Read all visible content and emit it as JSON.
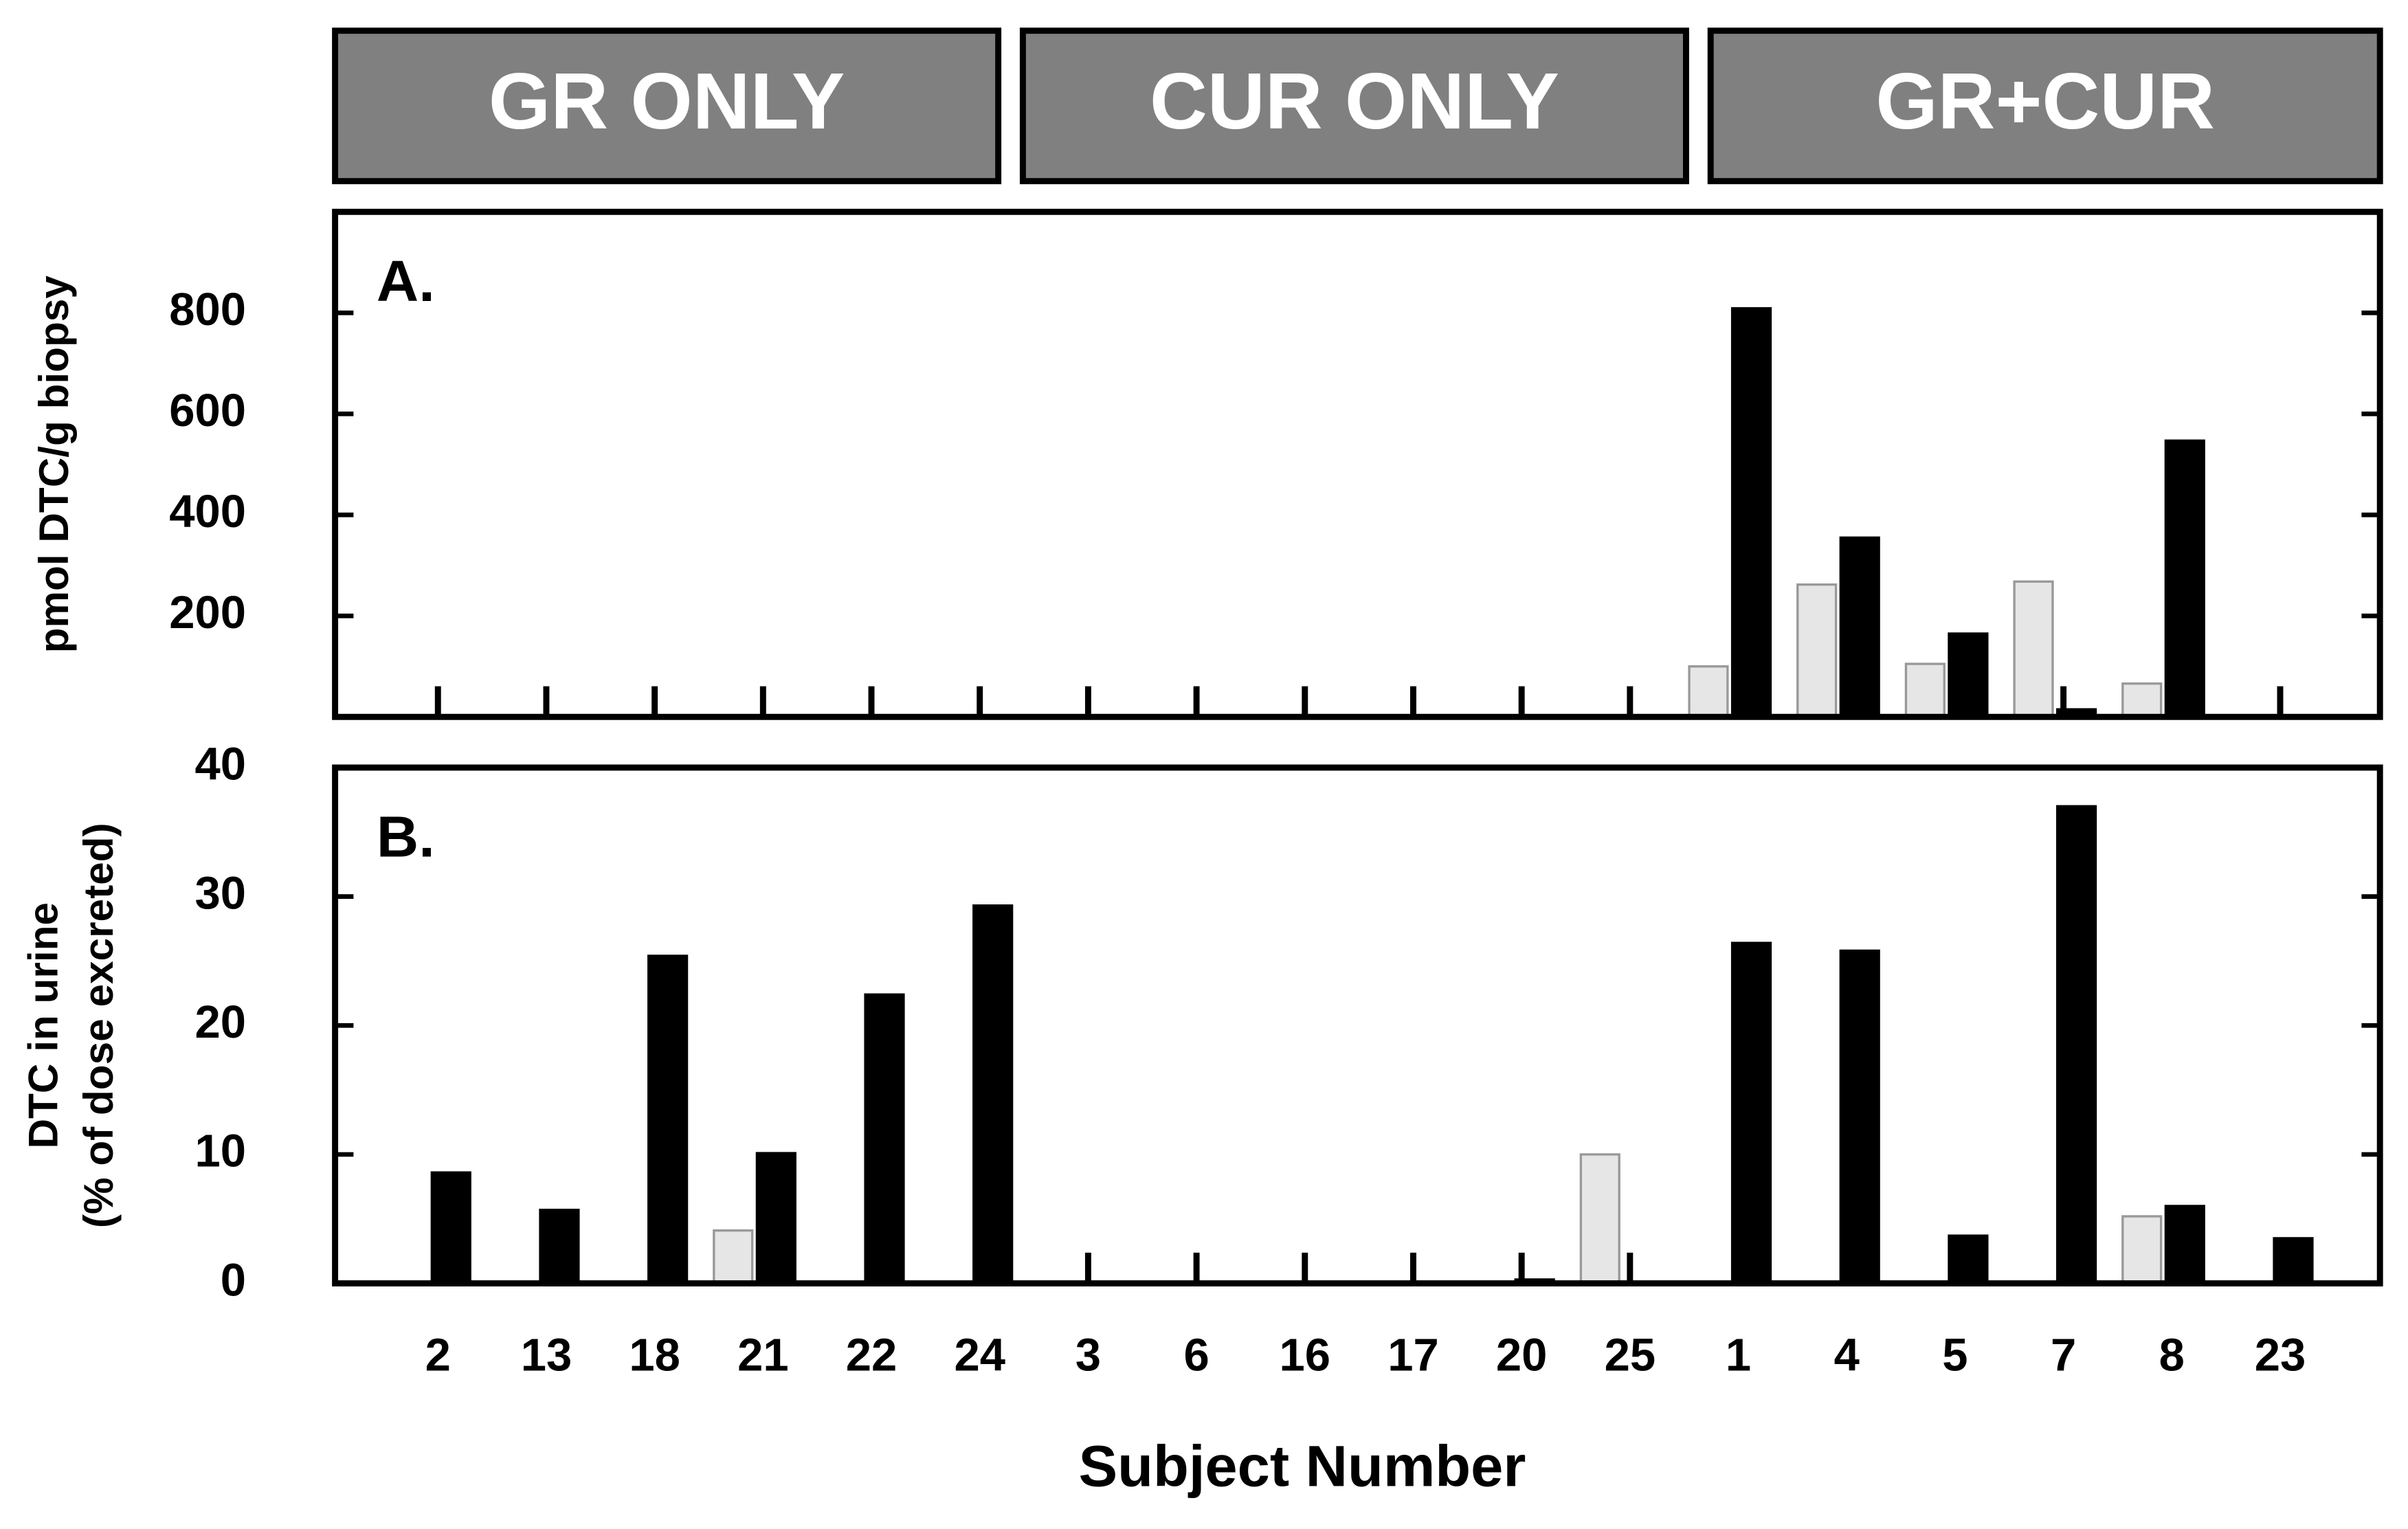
{
  "groups": [
    "GR ONLY",
    "CUR ONLY",
    "GR+CUR"
  ],
  "x_label": "Subject Number",
  "chart_data": [
    {
      "type": "bar",
      "panel_label": "A.",
      "y_label": [
        "pmol DTC/g biopsy"
      ],
      "ylim": [
        0,
        1000
      ],
      "yticks": [
        200,
        400,
        600,
        800
      ],
      "series": [
        {
          "color": "#e6e6e6",
          "values": [
            0,
            0,
            0,
            0,
            0,
            0,
            0,
            0,
            0,
            0,
            0,
            0,
            100,
            262,
            105,
            268,
            66,
            0
          ]
        },
        {
          "color": "#000000",
          "values": [
            0,
            0,
            0,
            0,
            0,
            0,
            0,
            0,
            0,
            0,
            0,
            0,
            809,
            355,
            165,
            15,
            547,
            0
          ]
        }
      ]
    },
    {
      "type": "bar",
      "panel_label": "B.",
      "y_label": [
        "DTC in urine",
        "(% of dose excreted)"
      ],
      "categories": [
        "2",
        "13",
        "18",
        "21",
        "22",
        "24",
        "3",
        "6",
        "16",
        "17",
        "20",
        "25",
        "1",
        "4",
        "5",
        "7",
        "8",
        "23"
      ],
      "ylim": [
        0,
        40
      ],
      "yticks": [
        0,
        10,
        20,
        30,
        40
      ],
      "series": [
        {
          "color": "#e6e6e6",
          "values": [
            0,
            0,
            0,
            4.1,
            0,
            0,
            0,
            0,
            0,
            0,
            0,
            10,
            0,
            0,
            0,
            0,
            5.2,
            0
          ]
        },
        {
          "color": "#000000",
          "values": [
            8.6,
            5.7,
            25.4,
            10.1,
            22.4,
            29.3,
            0,
            0,
            0,
            0,
            0.3,
            0,
            26.4,
            25.8,
            3.7,
            37,
            6,
            3.5
          ]
        }
      ]
    }
  ]
}
